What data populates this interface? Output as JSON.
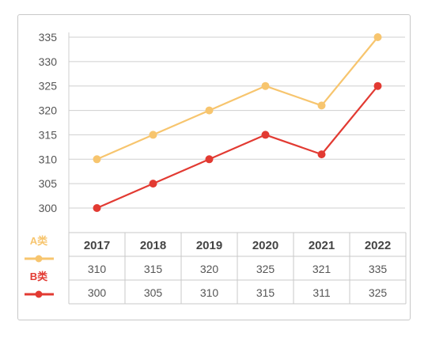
{
  "chart_data": {
    "type": "line",
    "categories": [
      "2017",
      "2018",
      "2019",
      "2020",
      "2021",
      "2022"
    ],
    "series": [
      {
        "name": "A类",
        "values": [
          310,
          315,
          320,
          325,
          321,
          335
        ],
        "color": "#f7c56e"
      },
      {
        "name": "B类",
        "values": [
          300,
          305,
          310,
          315,
          311,
          325
        ],
        "color": "#e23a32"
      }
    ],
    "yticks": [
      300,
      305,
      310,
      315,
      320,
      325,
      330,
      335
    ],
    "ylim": [
      300,
      335
    ],
    "grid": true,
    "legend": "left of data table",
    "table": {
      "header": [
        "2017",
        "2018",
        "2019",
        "2020",
        "2021",
        "2022"
      ],
      "rows": [
        [
          "310",
          "315",
          "320",
          "325",
          "321",
          "335"
        ],
        [
          "300",
          "305",
          "310",
          "315",
          "311",
          "325"
        ]
      ]
    }
  }
}
